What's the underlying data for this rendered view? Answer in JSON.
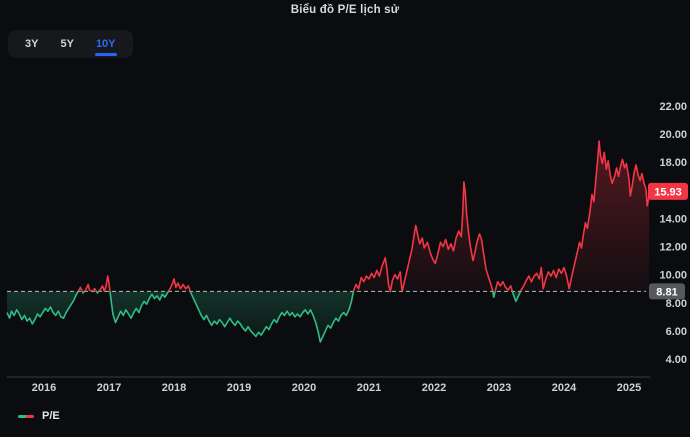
{
  "title": "Biểu đồ P/E lịch sử",
  "range_buttons": {
    "items": [
      {
        "label": "3Y",
        "active": false
      },
      {
        "label": "5Y",
        "active": false
      },
      {
        "label": "10Y",
        "active": true
      }
    ]
  },
  "legend": {
    "label": "P/E"
  },
  "colors": {
    "background": "#0b0c0f",
    "above_line": "#f23645",
    "below_line": "#2ebd85",
    "accent_blue": "#2962ff",
    "axis_text": "#cdd0d4",
    "baseline_dash": "#b7b9bd",
    "baseline_badge_bg": "#56585c",
    "last_badge_bg": "#f23645",
    "axis_line": "#3a3d43"
  },
  "chart_data": {
    "type": "line",
    "title": "Biểu đồ P/E lịch sử",
    "xlabel": "",
    "ylabel": "P/E",
    "legend_entries": [
      "P/E"
    ],
    "legend_position": "bottom-left",
    "grid": false,
    "baseline": {
      "value": 8.81,
      "label": "8.81"
    },
    "last": {
      "value": 15.93,
      "label": "15.93"
    },
    "x_ticks": [
      2016,
      2017,
      2018,
      2019,
      2020,
      2021,
      2022,
      2023,
      2024,
      2025
    ],
    "y_ticks": [
      22,
      20,
      18,
      16,
      14,
      12,
      10,
      8,
      6,
      4
    ],
    "xlim": [
      2015.43,
      2025.31
    ],
    "ylim": [
      2.9,
      22.4
    ],
    "series": [
      {
        "name": "P/E",
        "points": [
          [
            2015.43,
            7.3
          ],
          [
            2015.47,
            6.9
          ],
          [
            2015.5,
            7.4
          ],
          [
            2015.54,
            7.1
          ],
          [
            2015.58,
            7.5
          ],
          [
            2015.62,
            7.2
          ],
          [
            2015.66,
            6.8
          ],
          [
            2015.7,
            7.1
          ],
          [
            2015.74,
            6.7
          ],
          [
            2015.78,
            6.9
          ],
          [
            2015.82,
            6.5
          ],
          [
            2015.86,
            6.8
          ],
          [
            2015.9,
            7.2
          ],
          [
            2015.94,
            7.0
          ],
          [
            2015.98,
            7.3
          ],
          [
            2016.02,
            7.6
          ],
          [
            2016.06,
            7.4
          ],
          [
            2016.1,
            7.7
          ],
          [
            2016.14,
            7.3
          ],
          [
            2016.18,
            7.1
          ],
          [
            2016.22,
            7.4
          ],
          [
            2016.26,
            7.0
          ],
          [
            2016.3,
            6.9
          ],
          [
            2016.34,
            7.3
          ],
          [
            2016.38,
            7.6
          ],
          [
            2016.42,
            7.9
          ],
          [
            2016.46,
            8.2
          ],
          [
            2016.5,
            8.6
          ],
          [
            2016.54,
            8.9
          ],
          [
            2016.56,
            9.1
          ],
          [
            2016.6,
            8.7
          ],
          [
            2016.64,
            8.9
          ],
          [
            2016.68,
            9.3
          ],
          [
            2016.7,
            8.9
          ],
          [
            2016.74,
            8.8
          ],
          [
            2016.78,
            9.0
          ],
          [
            2016.82,
            8.7
          ],
          [
            2016.86,
            8.9
          ],
          [
            2016.9,
            9.2
          ],
          [
            2016.93,
            8.8
          ],
          [
            2016.96,
            9.3
          ],
          [
            2016.98,
            9.9
          ],
          [
            2017.0,
            9.4
          ],
          [
            2017.03,
            8.3
          ],
          [
            2017.06,
            7.2
          ],
          [
            2017.1,
            6.6
          ],
          [
            2017.14,
            7.0
          ],
          [
            2017.18,
            7.4
          ],
          [
            2017.22,
            7.1
          ],
          [
            2017.26,
            7.5
          ],
          [
            2017.3,
            7.2
          ],
          [
            2017.34,
            6.9
          ],
          [
            2017.38,
            7.3
          ],
          [
            2017.42,
            7.6
          ],
          [
            2017.46,
            7.3
          ],
          [
            2017.5,
            7.8
          ],
          [
            2017.54,
            8.1
          ],
          [
            2017.58,
            7.9
          ],
          [
            2017.62,
            8.3
          ],
          [
            2017.66,
            8.6
          ],
          [
            2017.7,
            8.3
          ],
          [
            2017.74,
            8.5
          ],
          [
            2017.78,
            8.2
          ],
          [
            2017.82,
            8.6
          ],
          [
            2017.86,
            8.4
          ],
          [
            2017.9,
            8.7
          ],
          [
            2017.94,
            9.0
          ],
          [
            2017.98,
            9.4
          ],
          [
            2018.0,
            9.7
          ],
          [
            2018.03,
            9.1
          ],
          [
            2018.06,
            9.4
          ],
          [
            2018.1,
            9.0
          ],
          [
            2018.14,
            9.3
          ],
          [
            2018.18,
            9.0
          ],
          [
            2018.22,
            9.2
          ],
          [
            2018.26,
            8.7
          ],
          [
            2018.3,
            8.3
          ],
          [
            2018.34,
            7.9
          ],
          [
            2018.38,
            7.5
          ],
          [
            2018.42,
            7.1
          ],
          [
            2018.46,
            6.8
          ],
          [
            2018.5,
            7.1
          ],
          [
            2018.54,
            6.7
          ],
          [
            2018.58,
            6.4
          ],
          [
            2018.62,
            6.7
          ],
          [
            2018.66,
            6.5
          ],
          [
            2018.7,
            6.8
          ],
          [
            2018.74,
            6.6
          ],
          [
            2018.78,
            6.3
          ],
          [
            2018.82,
            6.6
          ],
          [
            2018.86,
            6.9
          ],
          [
            2018.9,
            6.6
          ],
          [
            2018.94,
            6.4
          ],
          [
            2018.98,
            6.7
          ],
          [
            2019.02,
            6.5
          ],
          [
            2019.06,
            6.2
          ],
          [
            2019.1,
            6.0
          ],
          [
            2019.14,
            6.3
          ],
          [
            2019.18,
            6.0
          ],
          [
            2019.22,
            5.8
          ],
          [
            2019.26,
            5.6
          ],
          [
            2019.3,
            5.9
          ],
          [
            2019.34,
            5.7
          ],
          [
            2019.38,
            6.0
          ],
          [
            2019.42,
            6.3
          ],
          [
            2019.46,
            6.1
          ],
          [
            2019.5,
            6.5
          ],
          [
            2019.54,
            6.8
          ],
          [
            2019.58,
            6.6
          ],
          [
            2019.62,
            7.0
          ],
          [
            2019.66,
            7.3
          ],
          [
            2019.7,
            7.1
          ],
          [
            2019.74,
            7.4
          ],
          [
            2019.78,
            7.1
          ],
          [
            2019.82,
            7.3
          ],
          [
            2019.86,
            7.0
          ],
          [
            2019.9,
            7.2
          ],
          [
            2019.94,
            7.0
          ],
          [
            2019.98,
            7.3
          ],
          [
            2020.02,
            7.5
          ],
          [
            2020.06,
            7.2
          ],
          [
            2020.1,
            7.5
          ],
          [
            2020.14,
            7.1
          ],
          [
            2020.18,
            6.6
          ],
          [
            2020.22,
            5.9
          ],
          [
            2020.25,
            5.2
          ],
          [
            2020.29,
            5.6
          ],
          [
            2020.33,
            6.0
          ],
          [
            2020.37,
            6.4
          ],
          [
            2020.41,
            6.2
          ],
          [
            2020.45,
            6.6
          ],
          [
            2020.49,
            6.9
          ],
          [
            2020.53,
            6.7
          ],
          [
            2020.57,
            7.1
          ],
          [
            2020.61,
            7.3
          ],
          [
            2020.65,
            7.1
          ],
          [
            2020.69,
            7.5
          ],
          [
            2020.73,
            8.1
          ],
          [
            2020.76,
            8.8
          ],
          [
            2020.8,
            9.3
          ],
          [
            2020.84,
            9.0
          ],
          [
            2020.88,
            9.8
          ],
          [
            2020.92,
            9.5
          ],
          [
            2020.96,
            9.9
          ],
          [
            2021.0,
            9.7
          ],
          [
            2021.04,
            10.1
          ],
          [
            2021.08,
            9.8
          ],
          [
            2021.12,
            10.3
          ],
          [
            2021.16,
            9.9
          ],
          [
            2021.2,
            10.6
          ],
          [
            2021.25,
            11.2
          ],
          [
            2021.28,
            10.2
          ],
          [
            2021.3,
            9.3
          ],
          [
            2021.33,
            8.8
          ],
          [
            2021.36,
            9.6
          ],
          [
            2021.4,
            10.0
          ],
          [
            2021.44,
            9.7
          ],
          [
            2021.48,
            10.2
          ],
          [
            2021.51,
            8.8
          ],
          [
            2021.54,
            9.4
          ],
          [
            2021.58,
            10.2
          ],
          [
            2021.62,
            11.0
          ],
          [
            2021.66,
            11.8
          ],
          [
            2021.7,
            13.0
          ],
          [
            2021.72,
            13.5
          ],
          [
            2021.75,
            12.8
          ],
          [
            2021.78,
            12.2
          ],
          [
            2021.82,
            12.6
          ],
          [
            2021.85,
            11.9
          ],
          [
            2021.9,
            12.3
          ],
          [
            2021.94,
            11.6
          ],
          [
            2021.98,
            11.1
          ],
          [
            2022.02,
            10.8
          ],
          [
            2022.06,
            11.5
          ],
          [
            2022.1,
            12.3
          ],
          [
            2022.14,
            12.0
          ],
          [
            2022.18,
            12.5
          ],
          [
            2022.22,
            11.8
          ],
          [
            2022.26,
            12.2
          ],
          [
            2022.3,
            11.7
          ],
          [
            2022.34,
            12.6
          ],
          [
            2022.38,
            13.1
          ],
          [
            2022.42,
            12.7
          ],
          [
            2022.44,
            14.2
          ],
          [
            2022.46,
            16.6
          ],
          [
            2022.48,
            15.9
          ],
          [
            2022.5,
            14.4
          ],
          [
            2022.53,
            13.1
          ],
          [
            2022.56,
            12.0
          ],
          [
            2022.6,
            11.0
          ],
          [
            2022.63,
            11.6
          ],
          [
            2022.66,
            12.3
          ],
          [
            2022.7,
            12.9
          ],
          [
            2022.73,
            12.5
          ],
          [
            2022.76,
            11.6
          ],
          [
            2022.8,
            10.4
          ],
          [
            2022.84,
            9.8
          ],
          [
            2022.87,
            9.4
          ],
          [
            2022.9,
            8.9
          ],
          [
            2022.92,
            8.4
          ],
          [
            2022.95,
            9.0
          ],
          [
            2022.98,
            9.5
          ],
          [
            2023.02,
            9.2
          ],
          [
            2023.06,
            9.5
          ],
          [
            2023.1,
            9.1
          ],
          [
            2023.14,
            8.9
          ],
          [
            2023.18,
            9.2
          ],
          [
            2023.22,
            8.6
          ],
          [
            2023.26,
            8.1
          ],
          [
            2023.3,
            8.5
          ],
          [
            2023.34,
            8.9
          ],
          [
            2023.38,
            9.2
          ],
          [
            2023.42,
            9.6
          ],
          [
            2023.46,
            9.9
          ],
          [
            2023.5,
            9.5
          ],
          [
            2023.54,
            9.9
          ],
          [
            2023.58,
            10.1
          ],
          [
            2023.62,
            9.7
          ],
          [
            2023.65,
            10.5
          ],
          [
            2023.68,
            9.0
          ],
          [
            2023.72,
            9.7
          ],
          [
            2023.76,
            10.2
          ],
          [
            2023.8,
            9.9
          ],
          [
            2023.84,
            10.3
          ],
          [
            2023.88,
            9.8
          ],
          [
            2023.92,
            10.4
          ],
          [
            2023.96,
            10.1
          ],
          [
            2024.0,
            10.5
          ],
          [
            2024.04,
            9.9
          ],
          [
            2024.08,
            9.0
          ],
          [
            2024.12,
            9.9
          ],
          [
            2024.16,
            10.7
          ],
          [
            2024.2,
            11.5
          ],
          [
            2024.24,
            12.3
          ],
          [
            2024.27,
            11.9
          ],
          [
            2024.3,
            12.9
          ],
          [
            2024.33,
            13.7
          ],
          [
            2024.36,
            13.3
          ],
          [
            2024.4,
            14.5
          ],
          [
            2024.43,
            15.7
          ],
          [
            2024.46,
            15.2
          ],
          [
            2024.49,
            16.8
          ],
          [
            2024.52,
            18.3
          ],
          [
            2024.54,
            19.5
          ],
          [
            2024.56,
            18.5
          ],
          [
            2024.59,
            17.9
          ],
          [
            2024.62,
            18.7
          ],
          [
            2024.65,
            17.5
          ],
          [
            2024.68,
            18.1
          ],
          [
            2024.71,
            17.1
          ],
          [
            2024.74,
            16.5
          ],
          [
            2024.78,
            17.0
          ],
          [
            2024.81,
            17.6
          ],
          [
            2024.84,
            17.0
          ],
          [
            2024.87,
            17.7
          ],
          [
            2024.9,
            18.2
          ],
          [
            2024.93,
            17.6
          ],
          [
            2024.96,
            17.9
          ],
          [
            2025.0,
            16.8
          ],
          [
            2025.02,
            15.6
          ],
          [
            2025.05,
            16.3
          ],
          [
            2025.08,
            17.3
          ],
          [
            2025.11,
            17.8
          ],
          [
            2025.14,
            17.1
          ],
          [
            2025.17,
            16.7
          ],
          [
            2025.2,
            17.2
          ],
          [
            2025.23,
            16.5
          ],
          [
            2025.26,
            16.1
          ],
          [
            2025.28,
            14.9
          ],
          [
            2025.3,
            15.4
          ],
          [
            2025.31,
            15.93
          ]
        ]
      }
    ]
  }
}
